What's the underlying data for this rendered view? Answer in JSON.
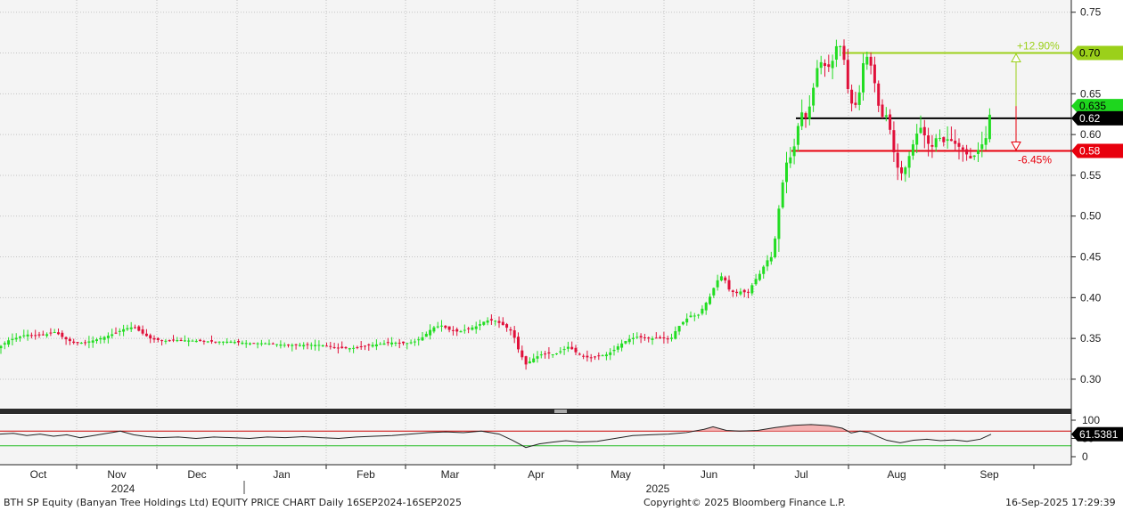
{
  "footer": {
    "title": "BTH SP Equity (Banyan Tree Holdings Ltd) EQUITY PRICE CHART  Daily 16SEP2024-16SEP2025",
    "copyright": "Copyright© 2025 Bloomberg Finance L.P.",
    "timestamp": "16-Sep-2025 17:29:39"
  },
  "chart_data": {
    "type": "candlestick",
    "title": "",
    "price_axis": {
      "ylim": [
        0.265,
        0.765
      ],
      "ticks": [
        "0.75",
        "0.70",
        "0.65",
        "0.60",
        "0.55",
        "0.50",
        "0.45",
        "0.40",
        "0.35",
        "0.30"
      ]
    },
    "indicator_axis": {
      "ylim": [
        0,
        100
      ],
      "ticks": [
        "100",
        "50",
        "0"
      ],
      "upper_line": 70,
      "lower_line": 30,
      "last_value": "61.5381"
    },
    "x_axis": {
      "months": [
        "Oct",
        "Nov",
        "Dec",
        "Jan",
        "Feb",
        "Mar",
        "Apr",
        "May",
        "Jun",
        "Jul",
        "Aug",
        "Sep"
      ],
      "years": [
        "2024",
        "2025"
      ]
    },
    "price_labels": [
      {
        "value": 0.7,
        "text": "0.70",
        "color": "#9bd01a"
      },
      {
        "value": 0.635,
        "text": "0.635",
        "color": "#1ed61e"
      },
      {
        "value": 0.62,
        "text": "0.62",
        "color": "#000000"
      },
      {
        "value": 0.58,
        "text": "0.58",
        "color": "#e8000d"
      }
    ],
    "levels": [
      {
        "value": 0.7,
        "color": "#9bd01a"
      },
      {
        "value": 0.62,
        "color": "#000000"
      },
      {
        "value": 0.58,
        "color": "#e8000d"
      }
    ],
    "annotations": {
      "up_pct": "+12.90%",
      "down_pct": "-6.45%"
    },
    "colors": {
      "up": "#22dd22",
      "down": "#e0103a",
      "indicator": "#222222",
      "upper_band": "#cc0000",
      "lower_band": "#22bb22"
    },
    "price_path": [
      [
        0,
        0.34
      ],
      [
        10,
        0.348
      ],
      [
        22,
        0.352
      ],
      [
        30,
        0.355
      ],
      [
        40,
        0.353
      ],
      [
        52,
        0.355
      ],
      [
        62,
        0.358
      ],
      [
        72,
        0.35
      ],
      [
        84,
        0.344
      ],
      [
        95,
        0.345
      ],
      [
        106,
        0.348
      ],
      [
        118,
        0.352
      ],
      [
        128,
        0.356
      ],
      [
        140,
        0.362
      ],
      [
        150,
        0.364
      ],
      [
        160,
        0.356
      ],
      [
        170,
        0.349
      ],
      [
        185,
        0.347
      ],
      [
        200,
        0.348
      ],
      [
        220,
        0.347
      ],
      [
        240,
        0.346
      ],
      [
        260,
        0.346
      ],
      [
        280,
        0.344
      ],
      [
        300,
        0.344
      ],
      [
        320,
        0.342
      ],
      [
        340,
        0.342
      ],
      [
        360,
        0.342
      ],
      [
        380,
        0.338
      ],
      [
        395,
        0.338
      ],
      [
        410,
        0.341
      ],
      [
        425,
        0.343
      ],
      [
        440,
        0.345
      ],
      [
        455,
        0.344
      ],
      [
        465,
        0.346
      ],
      [
        475,
        0.352
      ],
      [
        485,
        0.363
      ],
      [
        495,
        0.366
      ],
      [
        505,
        0.36
      ],
      [
        515,
        0.358
      ],
      [
        525,
        0.362
      ],
      [
        535,
        0.365
      ],
      [
        545,
        0.372
      ],
      [
        555,
        0.372
      ],
      [
        565,
        0.366
      ],
      [
        575,
        0.358
      ],
      [
        582,
        0.335
      ],
      [
        590,
        0.318
      ],
      [
        598,
        0.325
      ],
      [
        606,
        0.33
      ],
      [
        614,
        0.332
      ],
      [
        622,
        0.33
      ],
      [
        630,
        0.335
      ],
      [
        638,
        0.34
      ],
      [
        646,
        0.333
      ],
      [
        654,
        0.328
      ],
      [
        662,
        0.326
      ],
      [
        670,
        0.328
      ],
      [
        680,
        0.33
      ],
      [
        688,
        0.335
      ],
      [
        695,
        0.342
      ],
      [
        705,
        0.349
      ],
      [
        715,
        0.352
      ],
      [
        725,
        0.35
      ],
      [
        735,
        0.35
      ],
      [
        745,
        0.35
      ],
      [
        752,
        0.348
      ],
      [
        760,
        0.363
      ],
      [
        768,
        0.372
      ],
      [
        775,
        0.378
      ],
      [
        783,
        0.378
      ],
      [
        790,
        0.39
      ],
      [
        797,
        0.402
      ],
      [
        804,
        0.42
      ],
      [
        811,
        0.428
      ],
      [
        818,
        0.41
      ],
      [
        825,
        0.405
      ],
      [
        832,
        0.408
      ],
      [
        839,
        0.405
      ],
      [
        846,
        0.42
      ],
      [
        853,
        0.43
      ],
      [
        860,
        0.445
      ],
      [
        866,
        0.45
      ],
      [
        870,
        0.475
      ],
      [
        874,
        0.51
      ],
      [
        878,
        0.54
      ],
      [
        882,
        0.565
      ],
      [
        886,
        0.57
      ],
      [
        890,
        0.58
      ],
      [
        894,
        0.6
      ],
      [
        898,
        0.63
      ],
      [
        904,
        0.62
      ],
      [
        910,
        0.64
      ],
      [
        916,
        0.68
      ],
      [
        922,
        0.69
      ],
      [
        928,
        0.68
      ],
      [
        934,
        0.69
      ],
      [
        940,
        0.715
      ],
      [
        946,
        0.7
      ],
      [
        952,
        0.65
      ],
      [
        958,
        0.63
      ],
      [
        964,
        0.65
      ],
      [
        970,
        0.7
      ],
      [
        976,
        0.69
      ],
      [
        982,
        0.66
      ],
      [
        988,
        0.62
      ],
      [
        994,
        0.625
      ],
      [
        1000,
        0.6
      ],
      [
        1004,
        0.57
      ],
      [
        1010,
        0.55
      ],
      [
        1016,
        0.56
      ],
      [
        1022,
        0.58
      ],
      [
        1028,
        0.6
      ],
      [
        1034,
        0.61
      ],
      [
        1040,
        0.59
      ],
      [
        1046,
        0.585
      ],
      [
        1052,
        0.6
      ],
      [
        1058,
        0.59
      ],
      [
        1064,
        0.595
      ],
      [
        1070,
        0.59
      ],
      [
        1076,
        0.585
      ],
      [
        1082,
        0.58
      ],
      [
        1088,
        0.57
      ],
      [
        1094,
        0.575
      ],
      [
        1100,
        0.585
      ],
      [
        1106,
        0.595
      ],
      [
        1112,
        0.635
      ]
    ],
    "indicator_path": [
      [
        0,
        62
      ],
      [
        15,
        64
      ],
      [
        30,
        58
      ],
      [
        45,
        62
      ],
      [
        60,
        56
      ],
      [
        75,
        60
      ],
      [
        90,
        52
      ],
      [
        105,
        58
      ],
      [
        120,
        64
      ],
      [
        135,
        70
      ],
      [
        150,
        60
      ],
      [
        165,
        55
      ],
      [
        180,
        52
      ],
      [
        200,
        54
      ],
      [
        220,
        50
      ],
      [
        240,
        54
      ],
      [
        260,
        52
      ],
      [
        280,
        50
      ],
      [
        300,
        54
      ],
      [
        320,
        52
      ],
      [
        340,
        55
      ],
      [
        360,
        52
      ],
      [
        380,
        50
      ],
      [
        400,
        54
      ],
      [
        420,
        56
      ],
      [
        440,
        58
      ],
      [
        460,
        62
      ],
      [
        480,
        66
      ],
      [
        500,
        68
      ],
      [
        520,
        66
      ],
      [
        540,
        70
      ],
      [
        560,
        62
      ],
      [
        575,
        45
      ],
      [
        590,
        25
      ],
      [
        605,
        35
      ],
      [
        620,
        40
      ],
      [
        635,
        44
      ],
      [
        650,
        40
      ],
      [
        670,
        42
      ],
      [
        690,
        50
      ],
      [
        710,
        58
      ],
      [
        730,
        60
      ],
      [
        750,
        62
      ],
      [
        770,
        66
      ],
      [
        790,
        75
      ],
      [
        800,
        82
      ],
      [
        815,
        72
      ],
      [
        830,
        70
      ],
      [
        850,
        72
      ],
      [
        870,
        80
      ],
      [
        890,
        86
      ],
      [
        910,
        88
      ],
      [
        930,
        85
      ],
      [
        945,
        78
      ],
      [
        955,
        65
      ],
      [
        965,
        70
      ],
      [
        975,
        66
      ],
      [
        985,
        55
      ],
      [
        995,
        45
      ],
      [
        1010,
        38
      ],
      [
        1025,
        45
      ],
      [
        1040,
        48
      ],
      [
        1055,
        44
      ],
      [
        1070,
        46
      ],
      [
        1085,
        42
      ],
      [
        1100,
        48
      ],
      [
        1112,
        61.5
      ]
    ]
  }
}
